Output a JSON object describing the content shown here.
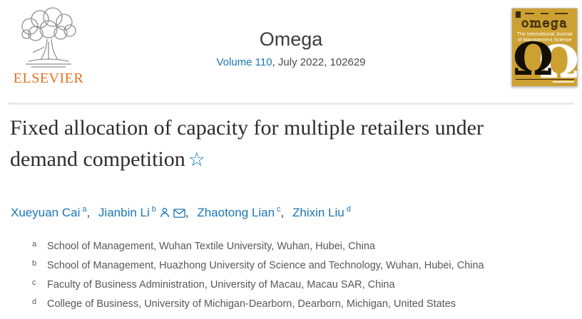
{
  "header": {
    "publisher": "ELSEVIER",
    "journal_title": "Omega",
    "volume_link": "Volume 110",
    "issue_info": ", July 2022, 102629",
    "cover": {
      "title": "omega",
      "subtitle_line1": "The International Journal",
      "subtitle_line2": "of Management Science",
      "omega_symbol": "Ω"
    }
  },
  "article": {
    "title": "Fixed allocation of capacity for multiple retailers under demand competition",
    "title_star": "☆",
    "authors": [
      {
        "name": "Xueyuan Cai",
        "sup": "a",
        "icons": []
      },
      {
        "name": "Jianbin Li",
        "sup": "b",
        "icons": [
          "person-icon",
          "envelope-icon"
        ]
      },
      {
        "name": "Zhaotong Lian",
        "sup": "c",
        "icons": []
      },
      {
        "name": "Zhixin Liu",
        "sup": "d",
        "icons": []
      }
    ],
    "affiliations": [
      {
        "sup": "a",
        "text": "School of Management, Wuhan Textile University, Wuhan, Hubei, China"
      },
      {
        "sup": "b",
        "text": "School of Management, Huazhong University of Science and Technology, Wuhan, Hubei, China"
      },
      {
        "sup": "c",
        "text": "Faculty of Business Administration, University of Macau, Macau SAR, China"
      },
      {
        "sup": "d",
        "text": "College of Business, University of Michigan-Dearborn, Dearborn, Michigan, United States"
      }
    ]
  },
  "colors": {
    "link_blue": "#1a77b8",
    "elsevier_orange": "#e8701f",
    "cover_gold": "#cda032",
    "title_text": "#2d2d2d",
    "body_gray": "#585858",
    "divider_gray": "#e9e9e9"
  }
}
